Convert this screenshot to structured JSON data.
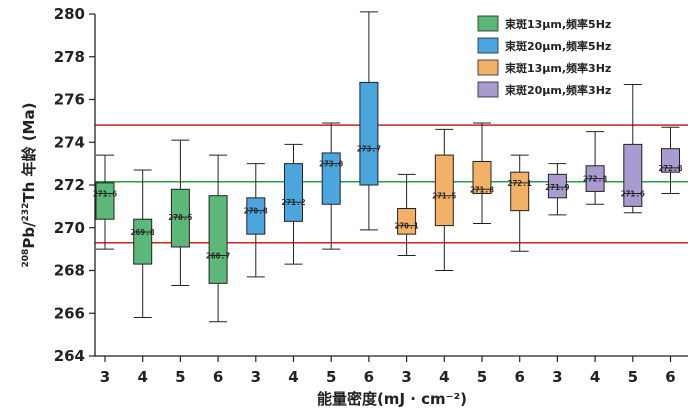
{
  "chart_data": {
    "type": "box",
    "xlabel": "能量密度(mJ · cm⁻²)",
    "ylabel_parts": {
      "sup1": "208",
      "pb": "Pb/",
      "sup2": "232",
      "rest": "Th 年龄 (Ma)"
    },
    "ylim": [
      264,
      280
    ],
    "yticks": [
      264,
      266,
      268,
      270,
      272,
      274,
      276,
      278,
      280
    ],
    "categories": [
      "3",
      "4",
      "5",
      "6",
      "3",
      "4",
      "5",
      "6",
      "3",
      "4",
      "5",
      "6",
      "3",
      "4",
      "5",
      "6"
    ],
    "reference_lines": [
      {
        "value": 274.8,
        "color": "#cc2222"
      },
      {
        "value": 272.15,
        "color": "#2a9d4a"
      },
      {
        "value": 269.3,
        "color": "#cc2222"
      }
    ],
    "series": [
      {
        "name": "束斑13μm,频率5Hz",
        "color": "#5cb878",
        "boxes": [
          {
            "cat": "3",
            "label": "271.6",
            "min": 269.0,
            "q1": 270.4,
            "median": 271.6,
            "q3": 272.1,
            "max": 273.4
          },
          {
            "cat": "4",
            "label": "269.8",
            "min": 265.8,
            "q1": 268.3,
            "median": 269.8,
            "q3": 270.4,
            "max": 272.7
          },
          {
            "cat": "5",
            "label": "270.5",
            "min": 267.3,
            "q1": 269.1,
            "median": 270.5,
            "q3": 271.8,
            "max": 274.1
          },
          {
            "cat": "6",
            "label": "268.7",
            "min": 265.6,
            "q1": 267.4,
            "median": 268.7,
            "q3": 271.5,
            "max": 273.4
          }
        ]
      },
      {
        "name": "束斑20μm,频率5Hz",
        "color": "#4aa6dd",
        "boxes": [
          {
            "cat": "3",
            "label": "270.8",
            "min": 267.7,
            "q1": 269.7,
            "median": 270.8,
            "q3": 271.4,
            "max": 273.0
          },
          {
            "cat": "4",
            "label": "271.2",
            "min": 268.3,
            "q1": 270.3,
            "median": 271.2,
            "q3": 273.0,
            "max": 273.9
          },
          {
            "cat": "5",
            "label": "273.0",
            "min": 269.0,
            "q1": 271.1,
            "median": 273.0,
            "q3": 273.5,
            "max": 274.9
          },
          {
            "cat": "6",
            "label": "273.7",
            "min": 269.9,
            "q1": 272.0,
            "median": 273.7,
            "q3": 276.8,
            "max": 280.1
          }
        ]
      },
      {
        "name": "束斑13μm,频率3Hz",
        "color": "#f3b168",
        "boxes": [
          {
            "cat": "3",
            "label": "270.1",
            "min": 268.7,
            "q1": 269.7,
            "median": 270.1,
            "q3": 270.9,
            "max": 272.5
          },
          {
            "cat": "4",
            "label": "271.5",
            "min": 268.0,
            "q1": 270.1,
            "median": 271.5,
            "q3": 273.4,
            "max": 274.6
          },
          {
            "cat": "5",
            "label": "271.8",
            "min": 270.2,
            "q1": 271.6,
            "median": 271.8,
            "q3": 273.1,
            "max": 274.9
          },
          {
            "cat": "6",
            "label": "272.1",
            "min": 268.9,
            "q1": 270.8,
            "median": 272.1,
            "q3": 272.6,
            "max": 273.4
          }
        ]
      },
      {
        "name": "束斑20μm,频率3Hz",
        "color": "#a99bd1",
        "boxes": [
          {
            "cat": "3",
            "label": "271.9",
            "min": 270.6,
            "q1": 271.4,
            "median": 271.9,
            "q3": 272.5,
            "max": 273.0
          },
          {
            "cat": "4",
            "label": "272.3",
            "min": 271.1,
            "q1": 271.7,
            "median": 272.3,
            "q3": 272.9,
            "max": 274.5
          },
          {
            "cat": "5",
            "label": "271.6",
            "min": 270.7,
            "q1": 271.0,
            "median": 271.6,
            "q3": 273.9,
            "max": 276.7
          },
          {
            "cat": "6",
            "label": "272.8",
            "min": 271.6,
            "q1": 272.6,
            "median": 272.8,
            "q3": 273.7,
            "max": 274.7
          }
        ]
      }
    ]
  }
}
